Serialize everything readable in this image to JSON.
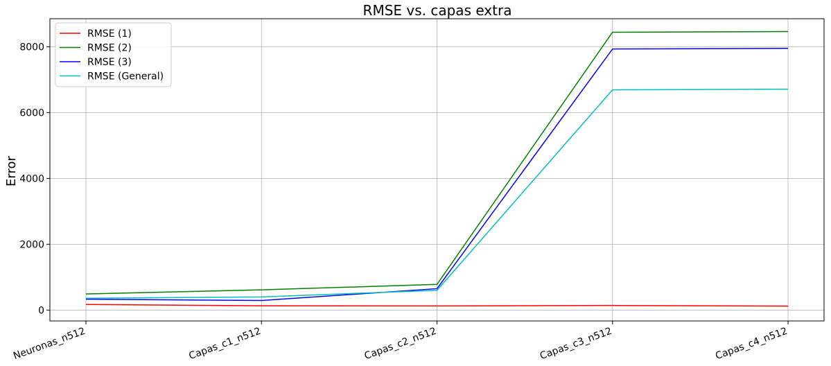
{
  "chart_data": {
    "type": "line",
    "title": "RMSE vs. capas extra",
    "xlabel": "",
    "ylabel": "Error",
    "categories": [
      "Neuronas_n512",
      "Capas_c1_n512",
      "Capas_c2_n512",
      "Capas_c3_n512",
      "Capas_c4_n512"
    ],
    "ylim": [
      -330,
      8850
    ],
    "yticks": [
      0,
      2000,
      4000,
      6000,
      8000
    ],
    "grid": true,
    "legend_position": "top-left",
    "series": [
      {
        "name": "RMSE (1)",
        "color": "#ff0000",
        "values": [
          170,
          130,
          125,
          140,
          120
        ]
      },
      {
        "name": "RMSE (2)",
        "color": "#008000",
        "values": [
          490,
          615,
          780,
          8440,
          8460
        ]
      },
      {
        "name": "RMSE (3)",
        "color": "#0000ff",
        "values": [
          330,
          290,
          650,
          7930,
          7950
        ]
      },
      {
        "name": "RMSE (General)",
        "color": "#00bfbf",
        "values": [
          360,
          400,
          600,
          6690,
          6710
        ]
      }
    ]
  }
}
